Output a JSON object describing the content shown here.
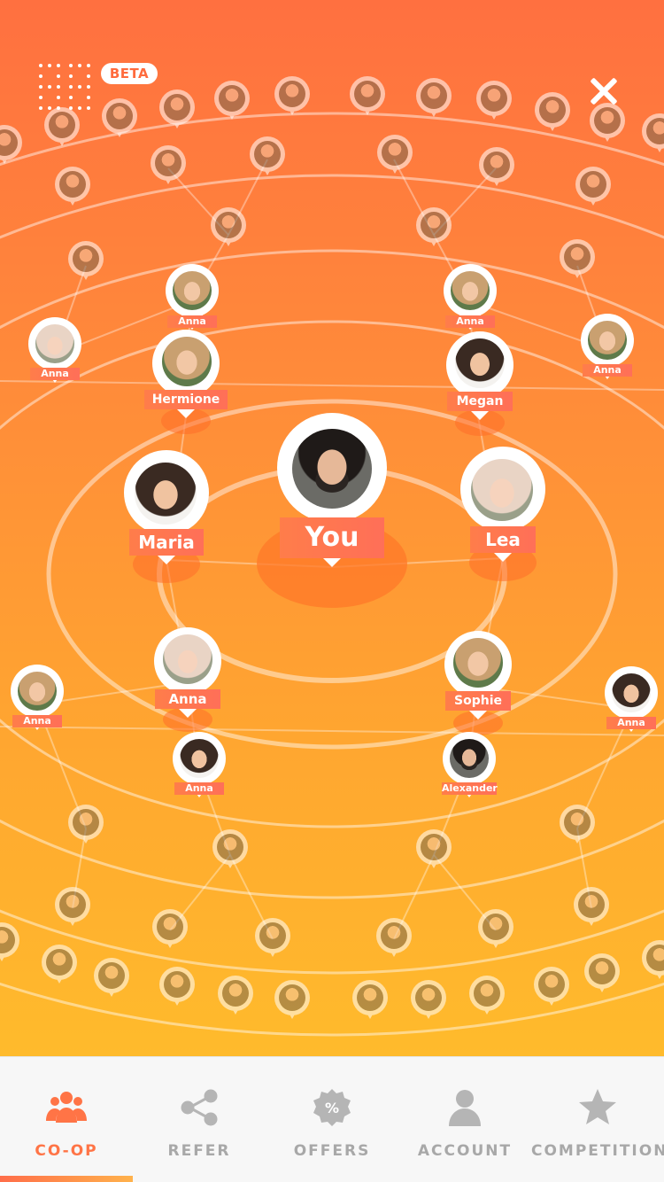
{
  "header": {
    "beta_label": "BETA"
  },
  "network": {
    "center": {
      "label": "You"
    },
    "nodes": [
      {
        "label": "Maria"
      },
      {
        "label": "Lea"
      },
      {
        "label": "Hermione"
      },
      {
        "label": "Megan"
      },
      {
        "label": "Anna"
      },
      {
        "label": "Anna"
      },
      {
        "label": "Anna"
      },
      {
        "label": "Anna"
      },
      {
        "label": "Anna"
      },
      {
        "label": "Sophie"
      },
      {
        "label": "Anna"
      },
      {
        "label": "Anna"
      },
      {
        "label": "Anna"
      },
      {
        "label": "Alexander"
      }
    ]
  },
  "tabs": [
    {
      "label": "CO-OP",
      "icon": "group-icon"
    },
    {
      "label": "REFER",
      "icon": "share-icon"
    },
    {
      "label": "OFFERS",
      "icon": "percent-badge-icon"
    },
    {
      "label": "ACCOUNT",
      "icon": "user-icon"
    },
    {
      "label": "COMPETITION",
      "icon": "star-icon"
    }
  ],
  "colors": {
    "accent": "#ff7446",
    "inactive": "#a8a8a8",
    "bg_top": "#ff7040",
    "bg_bottom": "#ffbb2c"
  }
}
